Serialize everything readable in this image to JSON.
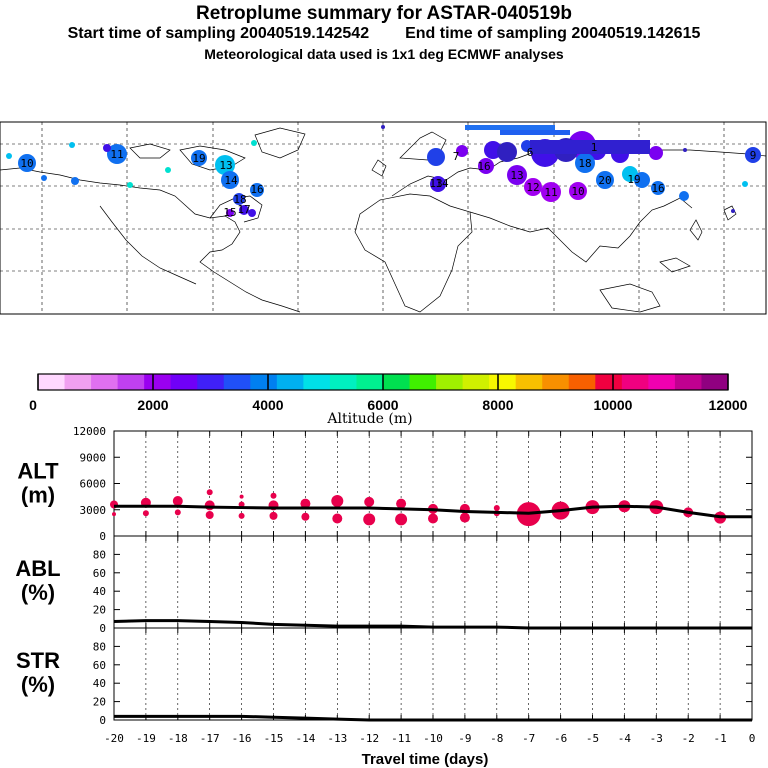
{
  "header": {
    "title": "Retroplume summary for ASTAR-040519b",
    "start_label": "Start time of sampling 20040519.142542",
    "end_label": "End time of sampling 20040519.142615",
    "met_label": "Meteorological data used is 1x1 deg ECMWF analyses"
  },
  "colors": {
    "plume": "#e8004c",
    "line": "#000000",
    "scale": [
      "#ffd8ff",
      "#f0a0f0",
      "#e070f0",
      "#c040f0",
      "#9a00f0",
      "#7000f8",
      "#4020f8",
      "#2050f8",
      "#0080f0",
      "#00b0f0",
      "#00e0e8",
      "#00f0c0",
      "#00f090",
      "#00e050",
      "#40f000",
      "#a0f000",
      "#d0f000",
      "#f8f800",
      "#f8c000",
      "#f89000",
      "#f86000",
      "#f00040",
      "#f00080",
      "#f000b0",
      "#c00090",
      "#900080"
    ]
  },
  "map": {
    "cluster_labels": [
      {
        "id": "c1",
        "text": "10"
      },
      {
        "id": "c2",
        "text": "11"
      },
      {
        "id": "c3",
        "text": "19"
      },
      {
        "id": "c4",
        "text": "13"
      },
      {
        "id": "c5",
        "text": "14"
      },
      {
        "id": "c6",
        "text": "16"
      },
      {
        "id": "c7",
        "text": "18"
      },
      {
        "id": "c8",
        "text": "17"
      },
      {
        "id": "c9",
        "text": "15"
      },
      {
        "id": "c10",
        "text": "16"
      },
      {
        "id": "c11",
        "text": "13"
      },
      {
        "id": "c12",
        "text": "14"
      },
      {
        "id": "c13",
        "text": "13"
      },
      {
        "id": "c14",
        "text": "12"
      },
      {
        "id": "c15",
        "text": "11"
      },
      {
        "id": "c16",
        "text": "10"
      },
      {
        "id": "c17",
        "text": "18"
      },
      {
        "id": "c18",
        "text": "20"
      },
      {
        "id": "c19",
        "text": "19"
      },
      {
        "id": "c20",
        "text": "16"
      },
      {
        "id": "c21",
        "text": "9"
      },
      {
        "id": "c22",
        "text": "7"
      },
      {
        "id": "c23",
        "text": "6"
      },
      {
        "id": "c24",
        "text": "1"
      }
    ]
  },
  "colorbar": {
    "xlabel": "Altitude (m)",
    "ticks": [
      "0",
      "2000",
      "4000",
      "6000",
      "8000",
      "10000",
      "12000"
    ]
  },
  "chart_data": [
    {
      "type": "scatter",
      "panel": "ALT",
      "ylabel": "ALT\n(m)",
      "ylabel_lines": [
        "ALT",
        "(m)"
      ],
      "ylim": [
        0,
        12000
      ],
      "yticks": [
        "0",
        "3000",
        "6000",
        "9000",
        "12000"
      ],
      "xlim": [
        -20,
        0
      ],
      "x": [
        -20,
        -19,
        -18,
        -17,
        -16,
        -15,
        -14,
        -13,
        -12,
        -11,
        -10,
        -9,
        -8,
        -7,
        -6,
        -5,
        -4,
        -3,
        -2,
        -1,
        0
      ],
      "mean_altitude": [
        3400,
        3400,
        3400,
        3300,
        3250,
        3200,
        3200,
        3200,
        3200,
        3100,
        3000,
        2800,
        2700,
        2600,
        2900,
        3300,
        3400,
        3300,
        2700,
        2200,
        2200
      ],
      "points": [
        {
          "x": -20,
          "y": 3600,
          "s": 4
        },
        {
          "x": -20,
          "y": 2500,
          "s": 2
        },
        {
          "x": -19,
          "y": 3800,
          "s": 5
        },
        {
          "x": -19,
          "y": 2600,
          "s": 3
        },
        {
          "x": -18,
          "y": 4000,
          "s": 5
        },
        {
          "x": -18,
          "y": 2700,
          "s": 3
        },
        {
          "x": -17,
          "y": 5000,
          "s": 3
        },
        {
          "x": -17,
          "y": 3500,
          "s": 5
        },
        {
          "x": -17,
          "y": 2400,
          "s": 4
        },
        {
          "x": -16,
          "y": 4500,
          "s": 2
        },
        {
          "x": -16,
          "y": 3600,
          "s": 3
        },
        {
          "x": -16,
          "y": 2300,
          "s": 3
        },
        {
          "x": -15,
          "y": 4600,
          "s": 3
        },
        {
          "x": -15,
          "y": 3500,
          "s": 5
        },
        {
          "x": -15,
          "y": 2300,
          "s": 4
        },
        {
          "x": -14,
          "y": 3700,
          "s": 5
        },
        {
          "x": -14,
          "y": 2200,
          "s": 4
        },
        {
          "x": -13,
          "y": 4000,
          "s": 6
        },
        {
          "x": -13,
          "y": 2000,
          "s": 5
        },
        {
          "x": -12,
          "y": 3900,
          "s": 5
        },
        {
          "x": -12,
          "y": 1900,
          "s": 6
        },
        {
          "x": -11,
          "y": 3700,
          "s": 5
        },
        {
          "x": -11,
          "y": 1900,
          "s": 6
        },
        {
          "x": -10,
          "y": 3100,
          "s": 5
        },
        {
          "x": -10,
          "y": 2000,
          "s": 5
        },
        {
          "x": -9,
          "y": 3100,
          "s": 5
        },
        {
          "x": -9,
          "y": 2100,
          "s": 5
        },
        {
          "x": -8,
          "y": 3200,
          "s": 3
        },
        {
          "x": -8,
          "y": 2600,
          "s": 3
        },
        {
          "x": -7,
          "y": 2500,
          "s": 12
        },
        {
          "x": -6,
          "y": 2900,
          "s": 9
        },
        {
          "x": -5,
          "y": 3300,
          "s": 7
        },
        {
          "x": -4,
          "y": 3400,
          "s": 6
        },
        {
          "x": -3,
          "y": 3300,
          "s": 7
        },
        {
          "x": -2,
          "y": 2700,
          "s": 5
        },
        {
          "x": -1,
          "y": 2100,
          "s": 6
        }
      ]
    },
    {
      "type": "line",
      "panel": "ABL",
      "ylabel": "ABL\n(%)",
      "ylabel_lines": [
        "ABL",
        "(%)"
      ],
      "ylim": [
        0,
        100
      ],
      "yticks": [
        "0",
        "20",
        "40",
        "60",
        "80"
      ],
      "xlim": [
        -20,
        0
      ],
      "x": [
        -20,
        -19,
        -18,
        -17,
        -16,
        -15,
        -14,
        -13,
        -12,
        -11,
        -10,
        -9,
        -8,
        -7,
        -6,
        -5,
        -4,
        -3,
        -2,
        -1,
        0
      ],
      "values": [
        7,
        8,
        8,
        7,
        6,
        4,
        3,
        2,
        2,
        2,
        1,
        1,
        1,
        0,
        0,
        0,
        0,
        0,
        0,
        0,
        0
      ]
    },
    {
      "type": "line",
      "panel": "STR",
      "ylabel": "STR\n(%)",
      "ylabel_lines": [
        "STR",
        "(%)"
      ],
      "ylim": [
        0,
        100
      ],
      "yticks": [
        "0",
        "20",
        "40",
        "60",
        "80"
      ],
      "xlim": [
        -20,
        0
      ],
      "x": [
        -20,
        -19,
        -18,
        -17,
        -16,
        -15,
        -14,
        -13,
        -12,
        -11,
        -10,
        -9,
        -8,
        -7,
        -6,
        -5,
        -4,
        -3,
        -2,
        -1,
        0
      ],
      "values": [
        4,
        4,
        4,
        4,
        4,
        3,
        2,
        1,
        0,
        0,
        0,
        0,
        0,
        0,
        0,
        0,
        0,
        0,
        0,
        0,
        0
      ],
      "xticks": [
        "-20",
        "-19",
        "-18",
        "-17",
        "-16",
        "-15",
        "-14",
        "-13",
        "-12",
        "-11",
        "-10",
        "-9",
        "-8",
        "-7",
        "-6",
        "-5",
        "-4",
        "-3",
        "-2",
        "-1",
        "0"
      ],
      "xlabel": "Travel time (days)"
    }
  ]
}
